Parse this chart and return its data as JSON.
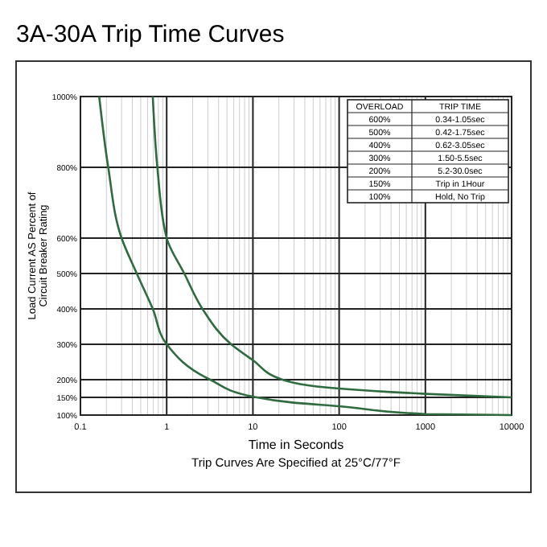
{
  "chart_data": {
    "type": "line",
    "title": "3A-30A Trip Time Curves",
    "xlabel": "Time in Seconds",
    "ylabel": "Load Current AS Percent of Circuit Breaker Rating",
    "annotations": [
      "Trip Curves Are Specified at 25°C/77°F",
      "OVERLOAD",
      "TRIP TIME",
      "600%",
      "0.34-1.05sec",
      "500%",
      "0.42-1.75sec",
      "400%",
      "0.62-3.05sec",
      "300%",
      "1.50-5.5sec",
      "200%",
      "5.2-30.0sec",
      "150%",
      "Trip in 1Hour",
      "100%",
      "Hold, No Trip"
    ],
    "log": "x",
    "xlim": [
      0.1,
      10000
    ],
    "xticks": [
      0.1,
      1,
      10,
      100,
      1000,
      10000
    ],
    "ylim": [
      100,
      1000
    ],
    "yticks": [
      {
        "value": 1000,
        "label": "1000%"
      },
      {
        "value": 800,
        "label": "800%"
      },
      {
        "value": 600,
        "label": "600%"
      },
      {
        "value": 500,
        "label": "500%"
      },
      {
        "value": 400,
        "label": "400%"
      },
      {
        "value": 300,
        "label": "300%"
      },
      {
        "value": 200,
        "label": "200%"
      },
      {
        "value": 150,
        "label": "150%"
      },
      {
        "value": 100,
        "label": "100%"
      }
    ],
    "grid": true,
    "marker": "none",
    "line_style": "solid",
    "series": [
      {
        "color": "#2e6b3e",
        "x": [
          0.165,
          0.21,
          0.3,
          0.45,
          0.69,
          1.0,
          3.2,
          10,
          30,
          100,
          1000,
          10000
        ],
        "values": [
          1000,
          800,
          600,
          500,
          400,
          300,
          200,
          152,
          135,
          125,
          103,
          100
        ]
      },
      {
        "color": "#2e6b3e",
        "x": [
          0.69,
          0.78,
          1.0,
          1.6,
          2.6,
          5.6,
          10,
          22,
          100,
          1000,
          10000
        ],
        "values": [
          1000,
          800,
          600,
          500,
          400,
          300,
          255,
          200,
          175,
          160,
          150
        ]
      }
    ]
  }
}
